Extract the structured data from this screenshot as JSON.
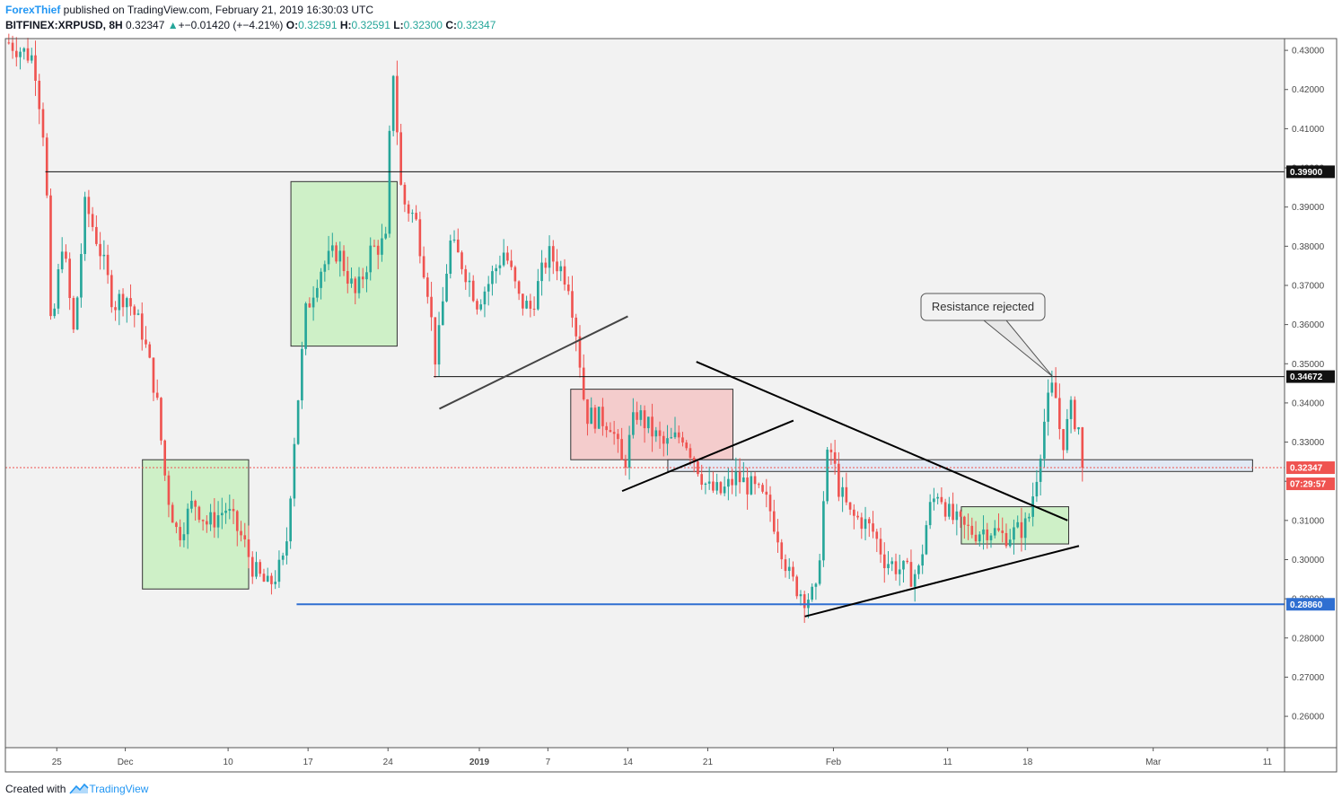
{
  "header": {
    "author": "ForexThief",
    "published_text": " published on TradingView.com, February 21, 2019 16:30:03 UTC",
    "symbol": "BITFINEX:XRPUSD, 8H",
    "last": "0.32347",
    "change": "+−0.01420 (+−4.21%)",
    "o_label": "O:",
    "o_value": "0.32591",
    "h_label": "H:",
    "h_value": "0.32591",
    "l_label": "L:",
    "l_value": "0.32300",
    "c_label": "C:",
    "c_value": "0.32347",
    "arrow_icon": "triangle-up-icon"
  },
  "footer": {
    "created_with": "Created with",
    "brand": "TradingView",
    "brand_icon": "tradingview-logo-icon"
  },
  "colors": {
    "up": "#26a69a",
    "down": "#ef5350",
    "green_box": "#c8f0c0",
    "red_box": "#f5c6c6",
    "blue_zone": "#dfe7f5",
    "support_line": "#2f6fd1",
    "current_tag": "#ef5350",
    "background": "#ffffff"
  },
  "chart_data": {
    "type": "candlestick",
    "instrument": "BITFINEX:XRPUSD",
    "timeframe": "8H",
    "ylim": [
      0.252,
      0.433
    ],
    "y_ticks": [
      "0.43000",
      "0.42000",
      "0.41000",
      "0.40000",
      "0.39000",
      "0.38000",
      "0.37000",
      "0.36000",
      "0.35000",
      "0.34000",
      "0.33000",
      "0.32000",
      "0.31000",
      "0.30000",
      "0.29000",
      "0.28000",
      "0.27000",
      "0.26000"
    ],
    "x_ticks": [
      {
        "label": "25",
        "day": -6
      },
      {
        "label": "Dec",
        "day": 0
      },
      {
        "label": "10",
        "day": 9
      },
      {
        "label": "17",
        "day": 16
      },
      {
        "label": "24",
        "day": 23
      },
      {
        "label": "2019",
        "day": 31,
        "bold": true
      },
      {
        "label": "7",
        "day": 37
      },
      {
        "label": "14",
        "day": 44
      },
      {
        "label": "21",
        "day": 51
      },
      {
        "label": "Feb",
        "day": 62
      },
      {
        "label": "11",
        "day": 72
      },
      {
        "label": "18",
        "day": 79
      },
      {
        "label": "Mar",
        "day": 90
      },
      {
        "label": "11",
        "day": 100
      }
    ],
    "x_range_days": [
      -10.5,
      101.5
    ],
    "current_price": {
      "value": 0.32347,
      "label": "0.32347",
      "countdown": "07:29:57"
    },
    "levels": [
      {
        "value": 0.399,
        "label": "0.39900",
        "from_day": -7,
        "style": "resistance"
      },
      {
        "value": 0.34672,
        "label": "0.34672",
        "from_day": 27,
        "style": "resistance"
      },
      {
        "value": 0.2886,
        "label": "0.28860",
        "from_day": 15,
        "style": "support"
      }
    ],
    "annotation": {
      "text": "Resistance rejected",
      "target_day": 81.2,
      "target_value": 0.3467
    },
    "zones": [
      {
        "kind": "green",
        "day0": 14.5,
        "day1": 23.8,
        "y0": 0.3545,
        "y1": 0.3965
      },
      {
        "kind": "green",
        "day0": 1.5,
        "day1": 10.8,
        "y0": 0.2925,
        "y1": 0.3255
      },
      {
        "kind": "red",
        "day0": 39,
        "day1": 53.2,
        "y0": 0.3255,
        "y1": 0.3435
      },
      {
        "kind": "green",
        "day0": 73.2,
        "day1": 82.6,
        "y0": 0.304,
        "y1": 0.3135
      },
      {
        "kind": "blue",
        "day0": 47.5,
        "day1": 98.7,
        "y0": 0.3225,
        "y1": 0.3255
      }
    ],
    "trendlines": [
      {
        "day0": 27.5,
        "v0": 0.3385,
        "day1": 44,
        "v1": 0.3621
      },
      {
        "day0": 43.5,
        "v0": 0.3175,
        "day1": 58.5,
        "v1": 0.3355
      },
      {
        "day0": 50,
        "v0": 0.3505,
        "day1": 82.5,
        "v1": 0.31
      },
      {
        "day0": 59.5,
        "v0": 0.2855,
        "day1": 83.5,
        "v1": 0.3035
      }
    ],
    "anchors": [
      {
        "day": -10.2,
        "close": 0.432
      },
      {
        "day": -8,
        "close": 0.428
      },
      {
        "day": -7,
        "close": 0.405
      },
      {
        "day": -6.5,
        "close": 0.356
      },
      {
        "day": -5.5,
        "close": 0.382
      },
      {
        "day": -4.5,
        "close": 0.357
      },
      {
        "day": -3.5,
        "close": 0.391
      },
      {
        "day": -2.3,
        "close": 0.38
      },
      {
        "day": -1,
        "close": 0.365
      },
      {
        "day": 0,
        "close": 0.368
      },
      {
        "day": 1.5,
        "close": 0.358
      },
      {
        "day": 2.7,
        "close": 0.342
      },
      {
        "day": 3.6,
        "close": 0.318
      },
      {
        "day": 4.6,
        "close": 0.306
      },
      {
        "day": 6,
        "close": 0.315
      },
      {
        "day": 7.2,
        "close": 0.309
      },
      {
        "day": 8.8,
        "close": 0.313
      },
      {
        "day": 10.3,
        "close": 0.305
      },
      {
        "day": 11.3,
        "close": 0.297
      },
      {
        "day": 12.5,
        "close": 0.293
      },
      {
        "day": 14,
        "close": 0.3
      },
      {
        "day": 14.8,
        "close": 0.331
      },
      {
        "day": 15.8,
        "close": 0.363
      },
      {
        "day": 17,
        "close": 0.374
      },
      {
        "day": 18.6,
        "close": 0.379
      },
      {
        "day": 20.2,
        "close": 0.367
      },
      {
        "day": 21.5,
        "close": 0.379
      },
      {
        "day": 22.8,
        "close": 0.381
      },
      {
        "day": 23.4,
        "close": 0.428
      },
      {
        "day": 24.2,
        "close": 0.392
      },
      {
        "day": 25.4,
        "close": 0.387
      },
      {
        "day": 26.5,
        "close": 0.369
      },
      {
        "day": 27.2,
        "close": 0.35
      },
      {
        "day": 28.4,
        "close": 0.381
      },
      {
        "day": 29.6,
        "close": 0.375
      },
      {
        "day": 30.8,
        "close": 0.366
      },
      {
        "day": 31.7,
        "close": 0.37
      },
      {
        "day": 33.2,
        "close": 0.379
      },
      {
        "day": 34.5,
        "close": 0.366
      },
      {
        "day": 35.5,
        "close": 0.364
      },
      {
        "day": 37,
        "close": 0.378
      },
      {
        "day": 38,
        "close": 0.375
      },
      {
        "day": 38.8,
        "close": 0.371
      },
      {
        "day": 39.6,
        "close": 0.356
      },
      {
        "day": 40.3,
        "close": 0.337
      },
      {
        "day": 41.5,
        "close": 0.336
      },
      {
        "day": 42.5,
        "close": 0.335
      },
      {
        "day": 43.6,
        "close": 0.323
      },
      {
        "day": 44.7,
        "close": 0.338
      },
      {
        "day": 46,
        "close": 0.333
      },
      {
        "day": 47.2,
        "close": 0.329
      },
      {
        "day": 48.8,
        "close": 0.332
      },
      {
        "day": 49.8,
        "close": 0.326
      },
      {
        "day": 51,
        "close": 0.318
      },
      {
        "day": 52.2,
        "close": 0.317
      },
      {
        "day": 53.5,
        "close": 0.321
      },
      {
        "day": 55,
        "close": 0.318
      },
      {
        "day": 56.3,
        "close": 0.314
      },
      {
        "day": 57.2,
        "close": 0.306
      },
      {
        "day": 58.2,
        "close": 0.295
      },
      {
        "day": 59.5,
        "close": 0.2905
      },
      {
        "day": 60.5,
        "close": 0.291
      },
      {
        "day": 61,
        "close": 0.31
      },
      {
        "day": 61.6,
        "close": 0.33
      },
      {
        "day": 62.5,
        "close": 0.318
      },
      {
        "day": 63.5,
        "close": 0.311
      },
      {
        "day": 64.5,
        "close": 0.31
      },
      {
        "day": 65.5,
        "close": 0.307
      },
      {
        "day": 66.5,
        "close": 0.3
      },
      {
        "day": 67.6,
        "close": 0.298
      },
      {
        "day": 68.8,
        "close": 0.296
      },
      {
        "day": 69.5,
        "close": 0.297
      },
      {
        "day": 70.3,
        "close": 0.312
      },
      {
        "day": 71.2,
        "close": 0.318
      },
      {
        "day": 72.2,
        "close": 0.311
      },
      {
        "day": 73.3,
        "close": 0.308
      },
      {
        "day": 74.4,
        "close": 0.307
      },
      {
        "day": 75.6,
        "close": 0.308
      },
      {
        "day": 76.8,
        "close": 0.306
      },
      {
        "day": 78,
        "close": 0.307
      },
      {
        "day": 79,
        "close": 0.309
      },
      {
        "day": 79.8,
        "close": 0.322
      },
      {
        "day": 80.6,
        "close": 0.338
      },
      {
        "day": 81.3,
        "close": 0.345
      },
      {
        "day": 82,
        "close": 0.329
      },
      {
        "day": 82.8,
        "close": 0.338
      },
      {
        "day": 83.5,
        "close": 0.3335
      },
      {
        "day": 83.95,
        "close": 0.32347
      }
    ],
    "title": "",
    "xlabel": "",
    "ylabel": ""
  }
}
